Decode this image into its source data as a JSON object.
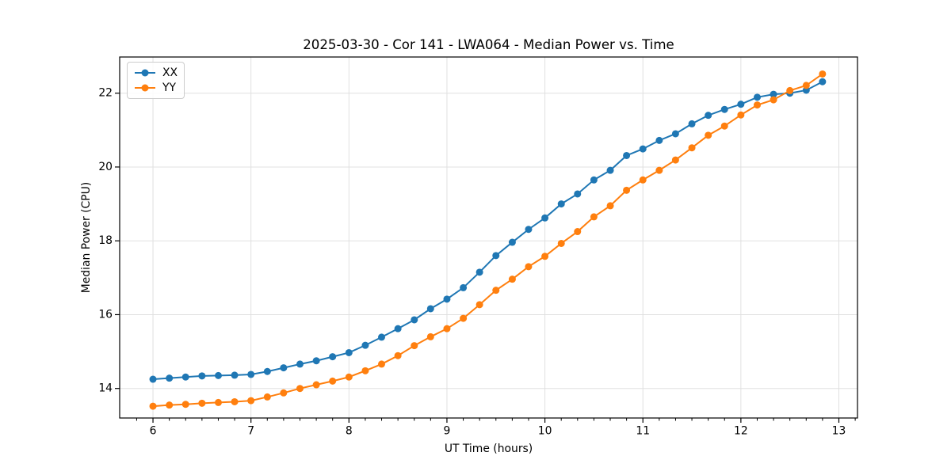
{
  "chart_data": {
    "type": "line",
    "title": "2025-03-30 - Cor 141 - LWA064 - Median Power vs. Time",
    "xlabel": "UT Time (hours)",
    "ylabel": "Median Power (CPU)",
    "xlim": [
      5.66,
      13.19
    ],
    "ylim": [
      13.2,
      22.98
    ],
    "xticks": [
      6,
      7,
      8,
      9,
      10,
      11,
      12,
      13
    ],
    "yticks": [
      14,
      16,
      18,
      20,
      22
    ],
    "x_minor_tick_step_hours": 0.1667,
    "grid": "major-both-axes",
    "grid_color": "#e0e0e0",
    "legend_position": "upper-left",
    "marker": "circle",
    "x": [
      6.0,
      6.167,
      6.333,
      6.5,
      6.667,
      6.833,
      7.0,
      7.167,
      7.333,
      7.5,
      7.667,
      7.833,
      8.0,
      8.167,
      8.333,
      8.5,
      8.667,
      8.833,
      9.0,
      9.167,
      9.333,
      9.5,
      9.667,
      9.833,
      10.0,
      10.167,
      10.333,
      10.5,
      10.667,
      10.833,
      11.0,
      11.167,
      11.333,
      11.5,
      11.667,
      11.833,
      12.0,
      12.167,
      12.333,
      12.5,
      12.667,
      12.833
    ],
    "series": [
      {
        "name": "XX",
        "color": "#1f77b4",
        "values": [
          14.25,
          14.28,
          14.31,
          14.34,
          14.35,
          14.36,
          14.38,
          14.46,
          14.56,
          14.66,
          14.75,
          14.86,
          14.97,
          15.17,
          15.39,
          15.62,
          15.86,
          16.16,
          16.42,
          16.73,
          17.15,
          17.6,
          17.96,
          18.31,
          18.62,
          19.0,
          19.27,
          19.65,
          19.91,
          20.31,
          20.49,
          20.72,
          20.9,
          21.17,
          21.4,
          21.56,
          21.7,
          21.89,
          21.97,
          22.0,
          22.08,
          22.31
        ]
      },
      {
        "name": "YY",
        "color": "#ff7f0e",
        "values": [
          13.52,
          13.55,
          13.57,
          13.6,
          13.62,
          13.64,
          13.67,
          13.77,
          13.88,
          14.0,
          14.1,
          14.2,
          14.31,
          14.48,
          14.66,
          14.89,
          15.16,
          15.4,
          15.62,
          15.9,
          16.27,
          16.66,
          16.96,
          17.3,
          17.58,
          17.93,
          18.25,
          18.65,
          18.95,
          19.37,
          19.65,
          19.91,
          20.19,
          20.52,
          20.86,
          21.11,
          21.41,
          21.68,
          21.82,
          22.07,
          22.21,
          22.52
        ]
      }
    ]
  }
}
